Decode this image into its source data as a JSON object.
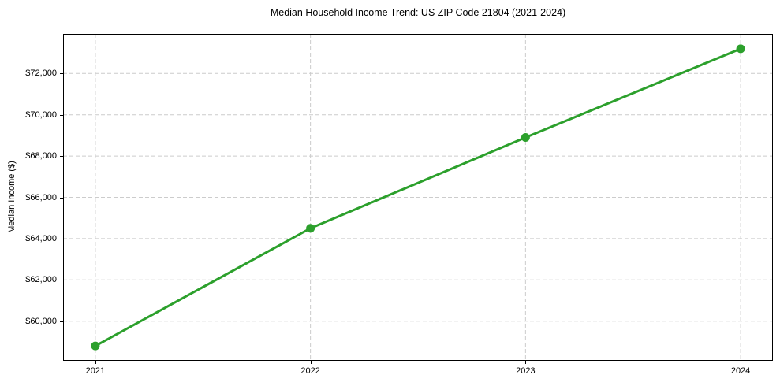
{
  "title": "Median Household Income Trend: US ZIP Code 21804 (2021-2024)",
  "chart_data": {
    "type": "line",
    "title": "Median Household Income Trend: US ZIP Code 21804 (2021-2024)",
    "xlabel": "",
    "ylabel": "Median Income ($)",
    "categories": [
      "2021",
      "2022",
      "2023",
      "2024"
    ],
    "series": [
      {
        "name": "Median Household Income",
        "values": [
          58800,
          64500,
          68900,
          73200
        ],
        "color": "#2ca02c",
        "marker": "circle",
        "line_width": 3,
        "marker_radius": 5.5
      }
    ],
    "yticks": [
      {
        "value": 60000,
        "label": "$60,000"
      },
      {
        "value": 62000,
        "label": "$62,000"
      },
      {
        "value": 64000,
        "label": "$64,000"
      },
      {
        "value": 66000,
        "label": "$66,000"
      },
      {
        "value": 68000,
        "label": "$68,000"
      },
      {
        "value": 70000,
        "label": "$70,000"
      },
      {
        "value": 72000,
        "label": "$72,000"
      }
    ],
    "ylim": [
      58080,
      73920
    ],
    "xlim": [
      -0.15,
      3.15
    ],
    "grid": "dashed, both axes",
    "legend_position": "none"
  },
  "colors": {
    "line": "#2ca02c",
    "grid": "#cccccc",
    "axis": "#000000",
    "background": "#ffffff",
    "text": "#000000"
  }
}
